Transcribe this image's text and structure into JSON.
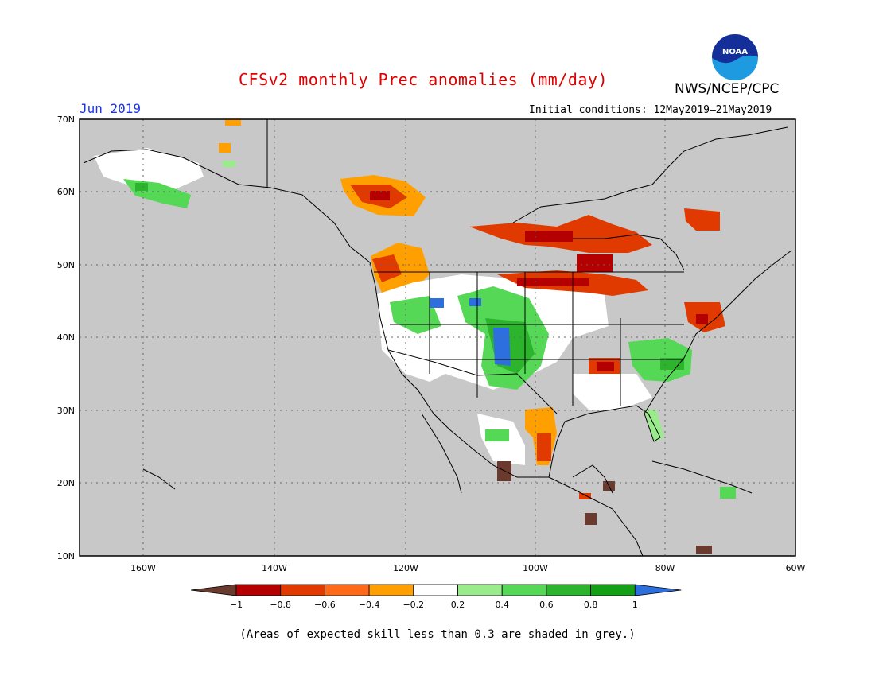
{
  "header": {
    "title": "CFSv2 monthly Prec anomalies (mm/day)",
    "org": "NWS/NCEP/CPC",
    "month": "Jun 2019",
    "initial_conditions": "Initial conditions: 12May2019–21May2019"
  },
  "logo": {
    "text": "NOAA",
    "icon": "noaa-logo"
  },
  "map": {
    "lat_ticks": [
      "70N",
      "60N",
      "50N",
      "40N",
      "30N",
      "20N",
      "10N"
    ],
    "lon_ticks": [
      "160W",
      "140W",
      "120W",
      "100W",
      "80W",
      "60W"
    ],
    "background_color": "#c8c8c8"
  },
  "colorbar": {
    "labels": [
      "−1",
      "−0.8",
      "−0.6",
      "−0.4",
      "−0.2",
      "0.2",
      "0.4",
      "0.6",
      "0.8",
      "1"
    ],
    "colors": [
      "#6b3a2e",
      "#b40000",
      "#e03a00",
      "#ff6a1a",
      "#ffa000",
      "#ffffff",
      "#9aeb8c",
      "#55d855",
      "#2db42d",
      "#14a014",
      "#2e6fe0"
    ]
  },
  "footer": {
    "note": "(Areas of expected skill less than 0.3 are shaded in grey.)"
  }
}
